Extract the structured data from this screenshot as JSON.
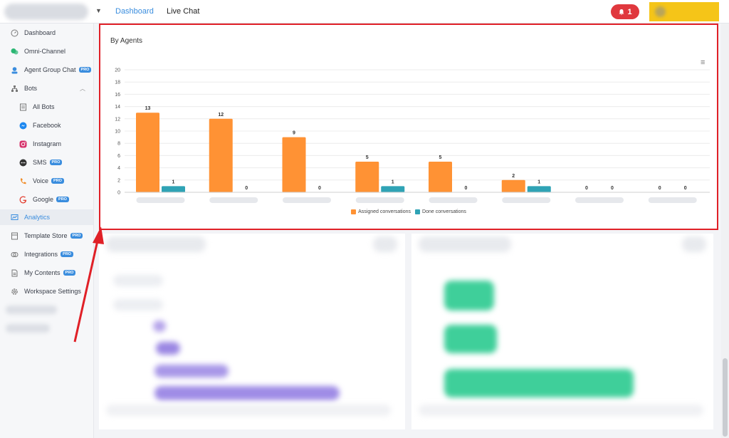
{
  "topbar": {
    "tabs": [
      {
        "label": "Dashboard",
        "active": true
      },
      {
        "label": "Live Chat",
        "active": false
      }
    ],
    "notification_count": "1",
    "bell_icon": "bell-icon",
    "accent_color": "#3a8dde",
    "alert_color": "#e0383e"
  },
  "sidebar": {
    "items": [
      {
        "label": "Dashboard",
        "icon": "dashboard-icon"
      },
      {
        "label": "Omni-Channel",
        "icon": "chat-bubbles-icon"
      },
      {
        "label": "Agent Group Chat",
        "icon": "agent-icon",
        "pro": "PRO"
      },
      {
        "label": "Bots",
        "icon": "bots-icon"
      },
      {
        "label": "All Bots",
        "icon": "list-icon"
      },
      {
        "label": "Facebook",
        "icon": "messenger-icon"
      },
      {
        "label": "Instagram",
        "icon": "instagram-icon"
      },
      {
        "label": "SMS",
        "icon": "sms-icon",
        "pro": "PRO"
      },
      {
        "label": "Voice",
        "icon": "phone-icon",
        "pro": "PRO"
      },
      {
        "label": "Google",
        "icon": "google-icon",
        "pro": "PRO"
      },
      {
        "label": "Analytics",
        "icon": "analytics-icon",
        "active": true
      },
      {
        "label": "Template Store",
        "icon": "template-icon",
        "pro": "PRO"
      },
      {
        "label": "Integrations",
        "icon": "integrations-icon",
        "pro": "PRO"
      },
      {
        "label": "My Contents",
        "icon": "contents-icon",
        "pro": "PRO"
      },
      {
        "label": "Workspace Settings",
        "icon": "gear-icon"
      }
    ]
  },
  "card": {
    "title": "By Agents",
    "menu_icon": "hamburger-menu-icon"
  },
  "chart_data": {
    "type": "bar",
    "categories": [
      "",
      "",
      "",
      "",
      "",
      "",
      "",
      ""
    ],
    "series": [
      {
        "name": "Assigned conversations",
        "color": "#ff9234",
        "values": [
          13,
          12,
          9,
          5,
          5,
          2,
          0,
          0
        ]
      },
      {
        "name": "Done conversations",
        "color": "#2fa3b5",
        "values": [
          1,
          0,
          0,
          1,
          0,
          1,
          0,
          0
        ]
      }
    ],
    "y_ticks": [
      "0",
      "2",
      "4",
      "6",
      "8",
      "10",
      "12",
      "14",
      "16",
      "18",
      "20"
    ],
    "ylim": [
      0,
      20
    ],
    "grid": true,
    "legend": "bottom",
    "data_labels": true
  }
}
